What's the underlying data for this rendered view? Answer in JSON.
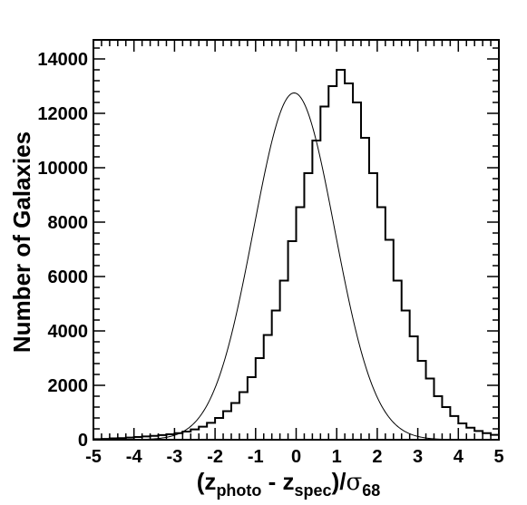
{
  "chart_data": {
    "type": "histogram",
    "xlabel": {
      "prefix": "(z",
      "sub1": "photo",
      "middle": " - z",
      "sub2": "spec",
      "suffix": ")/",
      "sigma": "σ",
      "sub3": "68"
    },
    "ylabel": "Number of Galaxies",
    "xlim": [
      -5,
      5
    ],
    "ylim": [
      0,
      14700
    ],
    "x_ticks": [
      -5,
      -4,
      -3,
      -2,
      -1,
      0,
      1,
      2,
      3,
      4,
      5
    ],
    "x_tick_labels": [
      "-5",
      "-4",
      "-3",
      "-2",
      "-1",
      "0",
      "1",
      "2",
      "3",
      "4",
      "5"
    ],
    "y_ticks": [
      0,
      2000,
      4000,
      6000,
      8000,
      10000,
      12000,
      14000
    ],
    "y_tick_labels": [
      "0",
      "2000",
      "4000",
      "6000",
      "8000",
      "10000",
      "12000",
      "14000"
    ],
    "bin_width": 0.2,
    "bin_edges_start": -5,
    "histogram_counts": [
      20,
      30,
      50,
      60,
      80,
      100,
      120,
      140,
      170,
      200,
      240,
      300,
      380,
      480,
      620,
      800,
      1050,
      1350,
      1750,
      2300,
      3000,
      3850,
      4750,
      5850,
      7300,
      8550,
      9800,
      11000,
      12250,
      13000,
      13600,
      13100,
      12400,
      11100,
      9800,
      8550,
      7350,
      5850,
      4750,
      3800,
      2900,
      2250,
      1600,
      1200,
      870,
      600,
      440,
      320,
      240,
      180
    ],
    "gaussian_fit": {
      "amplitude": 12750,
      "mean": -0.05,
      "sigma": 1.0
    },
    "grid": false,
    "legend": false
  }
}
